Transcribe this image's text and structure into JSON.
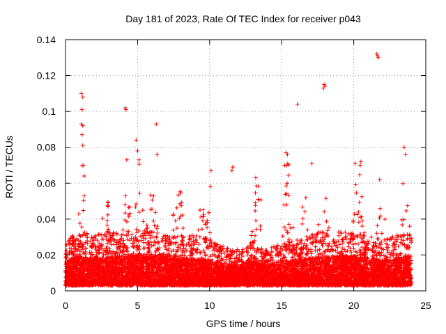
{
  "chart_data": {
    "type": "scatter",
    "title": "Day 181 of 2023, Rate Of TEC Index for receiver p043",
    "xlabel": "GPS time / hours",
    "ylabel": "ROTI / TECUs",
    "xlim": [
      0,
      25
    ],
    "ylim": [
      0,
      0.14
    ],
    "xticks": [
      0,
      5,
      10,
      15,
      20,
      25
    ],
    "yticks": [
      0,
      0.02,
      0.04,
      0.06,
      0.08,
      0.1,
      0.12,
      0.14
    ],
    "xtick_labels": [
      "0",
      "5",
      "10",
      "15",
      "20",
      "25"
    ],
    "ytick_labels": [
      "0",
      "0.02",
      "0.04",
      "0.06",
      "0.08",
      "0.1",
      "0.12",
      "0.14"
    ],
    "grid": true,
    "marker": "+",
    "marker_color": "#ff0000",
    "point_count_approx": 9000,
    "x_data_range": [
      0,
      24
    ],
    "note": "Dense cloud of points; baseline mostly 0.002–0.03 TECUs with spikes.",
    "outliers": [
      {
        "x": 1.1,
        "y": 0.11
      },
      {
        "x": 1.2,
        "y": 0.108
      },
      {
        "x": 1.15,
        "y": 0.101
      },
      {
        "x": 1.1,
        "y": 0.093
      },
      {
        "x": 1.2,
        "y": 0.092
      },
      {
        "x": 1.15,
        "y": 0.087
      },
      {
        "x": 1.2,
        "y": 0.081
      },
      {
        "x": 1.25,
        "y": 0.07
      },
      {
        "x": 1.3,
        "y": 0.064
      },
      {
        "x": 4.15,
        "y": 0.102
      },
      {
        "x": 4.2,
        "y": 0.101
      },
      {
        "x": 4.25,
        "y": 0.073
      },
      {
        "x": 4.9,
        "y": 0.084
      },
      {
        "x": 5.0,
        "y": 0.078
      },
      {
        "x": 5.1,
        "y": 0.073
      },
      {
        "x": 6.3,
        "y": 0.093
      },
      {
        "x": 6.35,
        "y": 0.076
      },
      {
        "x": 10.1,
        "y": 0.067
      },
      {
        "x": 11.6,
        "y": 0.069
      },
      {
        "x": 11.55,
        "y": 0.067
      },
      {
        "x": 13.2,
        "y": 0.063
      },
      {
        "x": 15.3,
        "y": 0.077
      },
      {
        "x": 15.4,
        "y": 0.076
      },
      {
        "x": 15.2,
        "y": 0.07
      },
      {
        "x": 16.1,
        "y": 0.104
      },
      {
        "x": 17.1,
        "y": 0.071
      },
      {
        "x": 17.95,
        "y": 0.115
      },
      {
        "x": 18.0,
        "y": 0.114
      },
      {
        "x": 17.9,
        "y": 0.113
      },
      {
        "x": 20.1,
        "y": 0.071
      },
      {
        "x": 20.5,
        "y": 0.072
      },
      {
        "x": 20.45,
        "y": 0.07
      },
      {
        "x": 21.6,
        "y": 0.132
      },
      {
        "x": 21.65,
        "y": 0.131
      },
      {
        "x": 21.7,
        "y": 0.13
      },
      {
        "x": 21.8,
        "y": 0.062
      },
      {
        "x": 23.5,
        "y": 0.08
      },
      {
        "x": 23.6,
        "y": 0.076
      }
    ],
    "spike_profile": [
      {
        "center": 1.15,
        "width": 0.35,
        "height": 0.072
      },
      {
        "center": 2.8,
        "width": 0.4,
        "height": 0.055
      },
      {
        "center": 4.3,
        "width": 0.45,
        "height": 0.06
      },
      {
        "center": 5.1,
        "width": 0.4,
        "height": 0.07
      },
      {
        "center": 6.0,
        "width": 0.5,
        "height": 0.058
      },
      {
        "center": 7.8,
        "width": 0.5,
        "height": 0.062
      },
      {
        "center": 9.5,
        "width": 0.6,
        "height": 0.052
      },
      {
        "center": 10.1,
        "width": 0.3,
        "height": 0.06
      },
      {
        "center": 13.3,
        "width": 0.6,
        "height": 0.06
      },
      {
        "center": 15.4,
        "width": 0.5,
        "height": 0.07
      },
      {
        "center": 16.6,
        "width": 0.4,
        "height": 0.055
      },
      {
        "center": 18.0,
        "width": 0.6,
        "height": 0.062
      },
      {
        "center": 20.3,
        "width": 0.5,
        "height": 0.066
      },
      {
        "center": 21.9,
        "width": 0.5,
        "height": 0.05
      },
      {
        "center": 23.6,
        "width": 0.4,
        "height": 0.072
      }
    ],
    "quiet_profile": [
      {
        "x": 0,
        "level": 0.026
      },
      {
        "x": 1,
        "level": 0.03
      },
      {
        "x": 2,
        "level": 0.028
      },
      {
        "x": 3,
        "level": 0.03
      },
      {
        "x": 4,
        "level": 0.03
      },
      {
        "x": 5,
        "level": 0.032
      },
      {
        "x": 6,
        "level": 0.03
      },
      {
        "x": 7,
        "level": 0.028
      },
      {
        "x": 8,
        "level": 0.028
      },
      {
        "x": 9,
        "level": 0.028
      },
      {
        "x": 10,
        "level": 0.026
      },
      {
        "x": 11,
        "level": 0.022
      },
      {
        "x": 12,
        "level": 0.02
      },
      {
        "x": 13,
        "level": 0.026
      },
      {
        "x": 14,
        "level": 0.02
      },
      {
        "x": 15,
        "level": 0.024
      },
      {
        "x": 16,
        "level": 0.026
      },
      {
        "x": 17,
        "level": 0.028
      },
      {
        "x": 18,
        "level": 0.03
      },
      {
        "x": 19,
        "level": 0.03
      },
      {
        "x": 20,
        "level": 0.03
      },
      {
        "x": 21,
        "level": 0.028
      },
      {
        "x": 22,
        "level": 0.026
      },
      {
        "x": 23,
        "level": 0.028
      },
      {
        "x": 24,
        "level": 0.03
      }
    ]
  }
}
